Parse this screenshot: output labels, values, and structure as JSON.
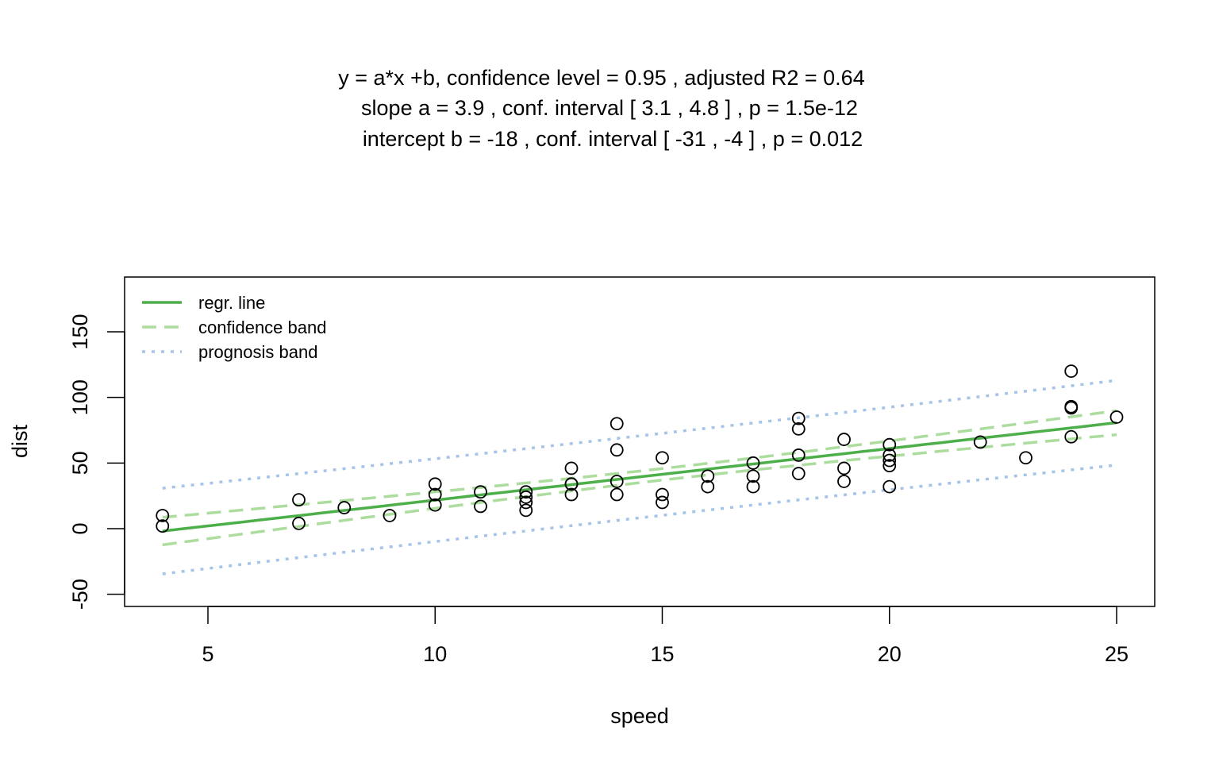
{
  "chart_data": {
    "type": "scatter",
    "title_lines": [
      "y = a*x +b, confidence level =  0.95 , adjusted R2 =  0.64",
      "slope a =  3.9 , conf. interval [ 3.1 , 4.8 ] , p =  1.5e-12",
      "intercept b =  -18 , conf. interval [ -31 , -4 ] , p =  0.012"
    ],
    "xlabel": "speed",
    "ylabel": "dist",
    "xlim": [
      3.16,
      25.84
    ],
    "ylim": [
      -59,
      190
    ],
    "xticks": [
      5,
      10,
      15,
      20,
      25
    ],
    "yticks": [
      -50,
      0,
      50,
      100,
      150
    ],
    "legend": {
      "placement": "top-left",
      "entries": [
        {
          "label": "regr. line",
          "color": "#4daf4a",
          "style": "solid"
        },
        {
          "label": "confidence band",
          "color": "#addd9e",
          "style": "dashed"
        },
        {
          "label": "prognosis band",
          "color": "#a6c4e8",
          "style": "dotted"
        }
      ]
    },
    "confidence_level": 0.95,
    "points": {
      "x": [
        4,
        4,
        7,
        7,
        8,
        9,
        10,
        10,
        10,
        11,
        11,
        12,
        12,
        12,
        12,
        13,
        13,
        13,
        13,
        14,
        14,
        14,
        14,
        15,
        15,
        15,
        16,
        16,
        17,
        17,
        17,
        18,
        18,
        18,
        18,
        19,
        19,
        19,
        20,
        20,
        20,
        20,
        20,
        22,
        23,
        24,
        24,
        24,
        24,
        25
      ],
      "y": [
        2,
        10,
        4,
        22,
        16,
        10,
        18,
        26,
        34,
        17,
        28,
        14,
        20,
        24,
        28,
        26,
        34,
        34,
        46,
        26,
        36,
        60,
        80,
        20,
        26,
        54,
        32,
        40,
        32,
        40,
        50,
        42,
        56,
        76,
        84,
        36,
        46,
        68,
        32,
        48,
        52,
        56,
        64,
        66,
        54,
        70,
        92,
        93,
        120,
        85
      ]
    }
  }
}
